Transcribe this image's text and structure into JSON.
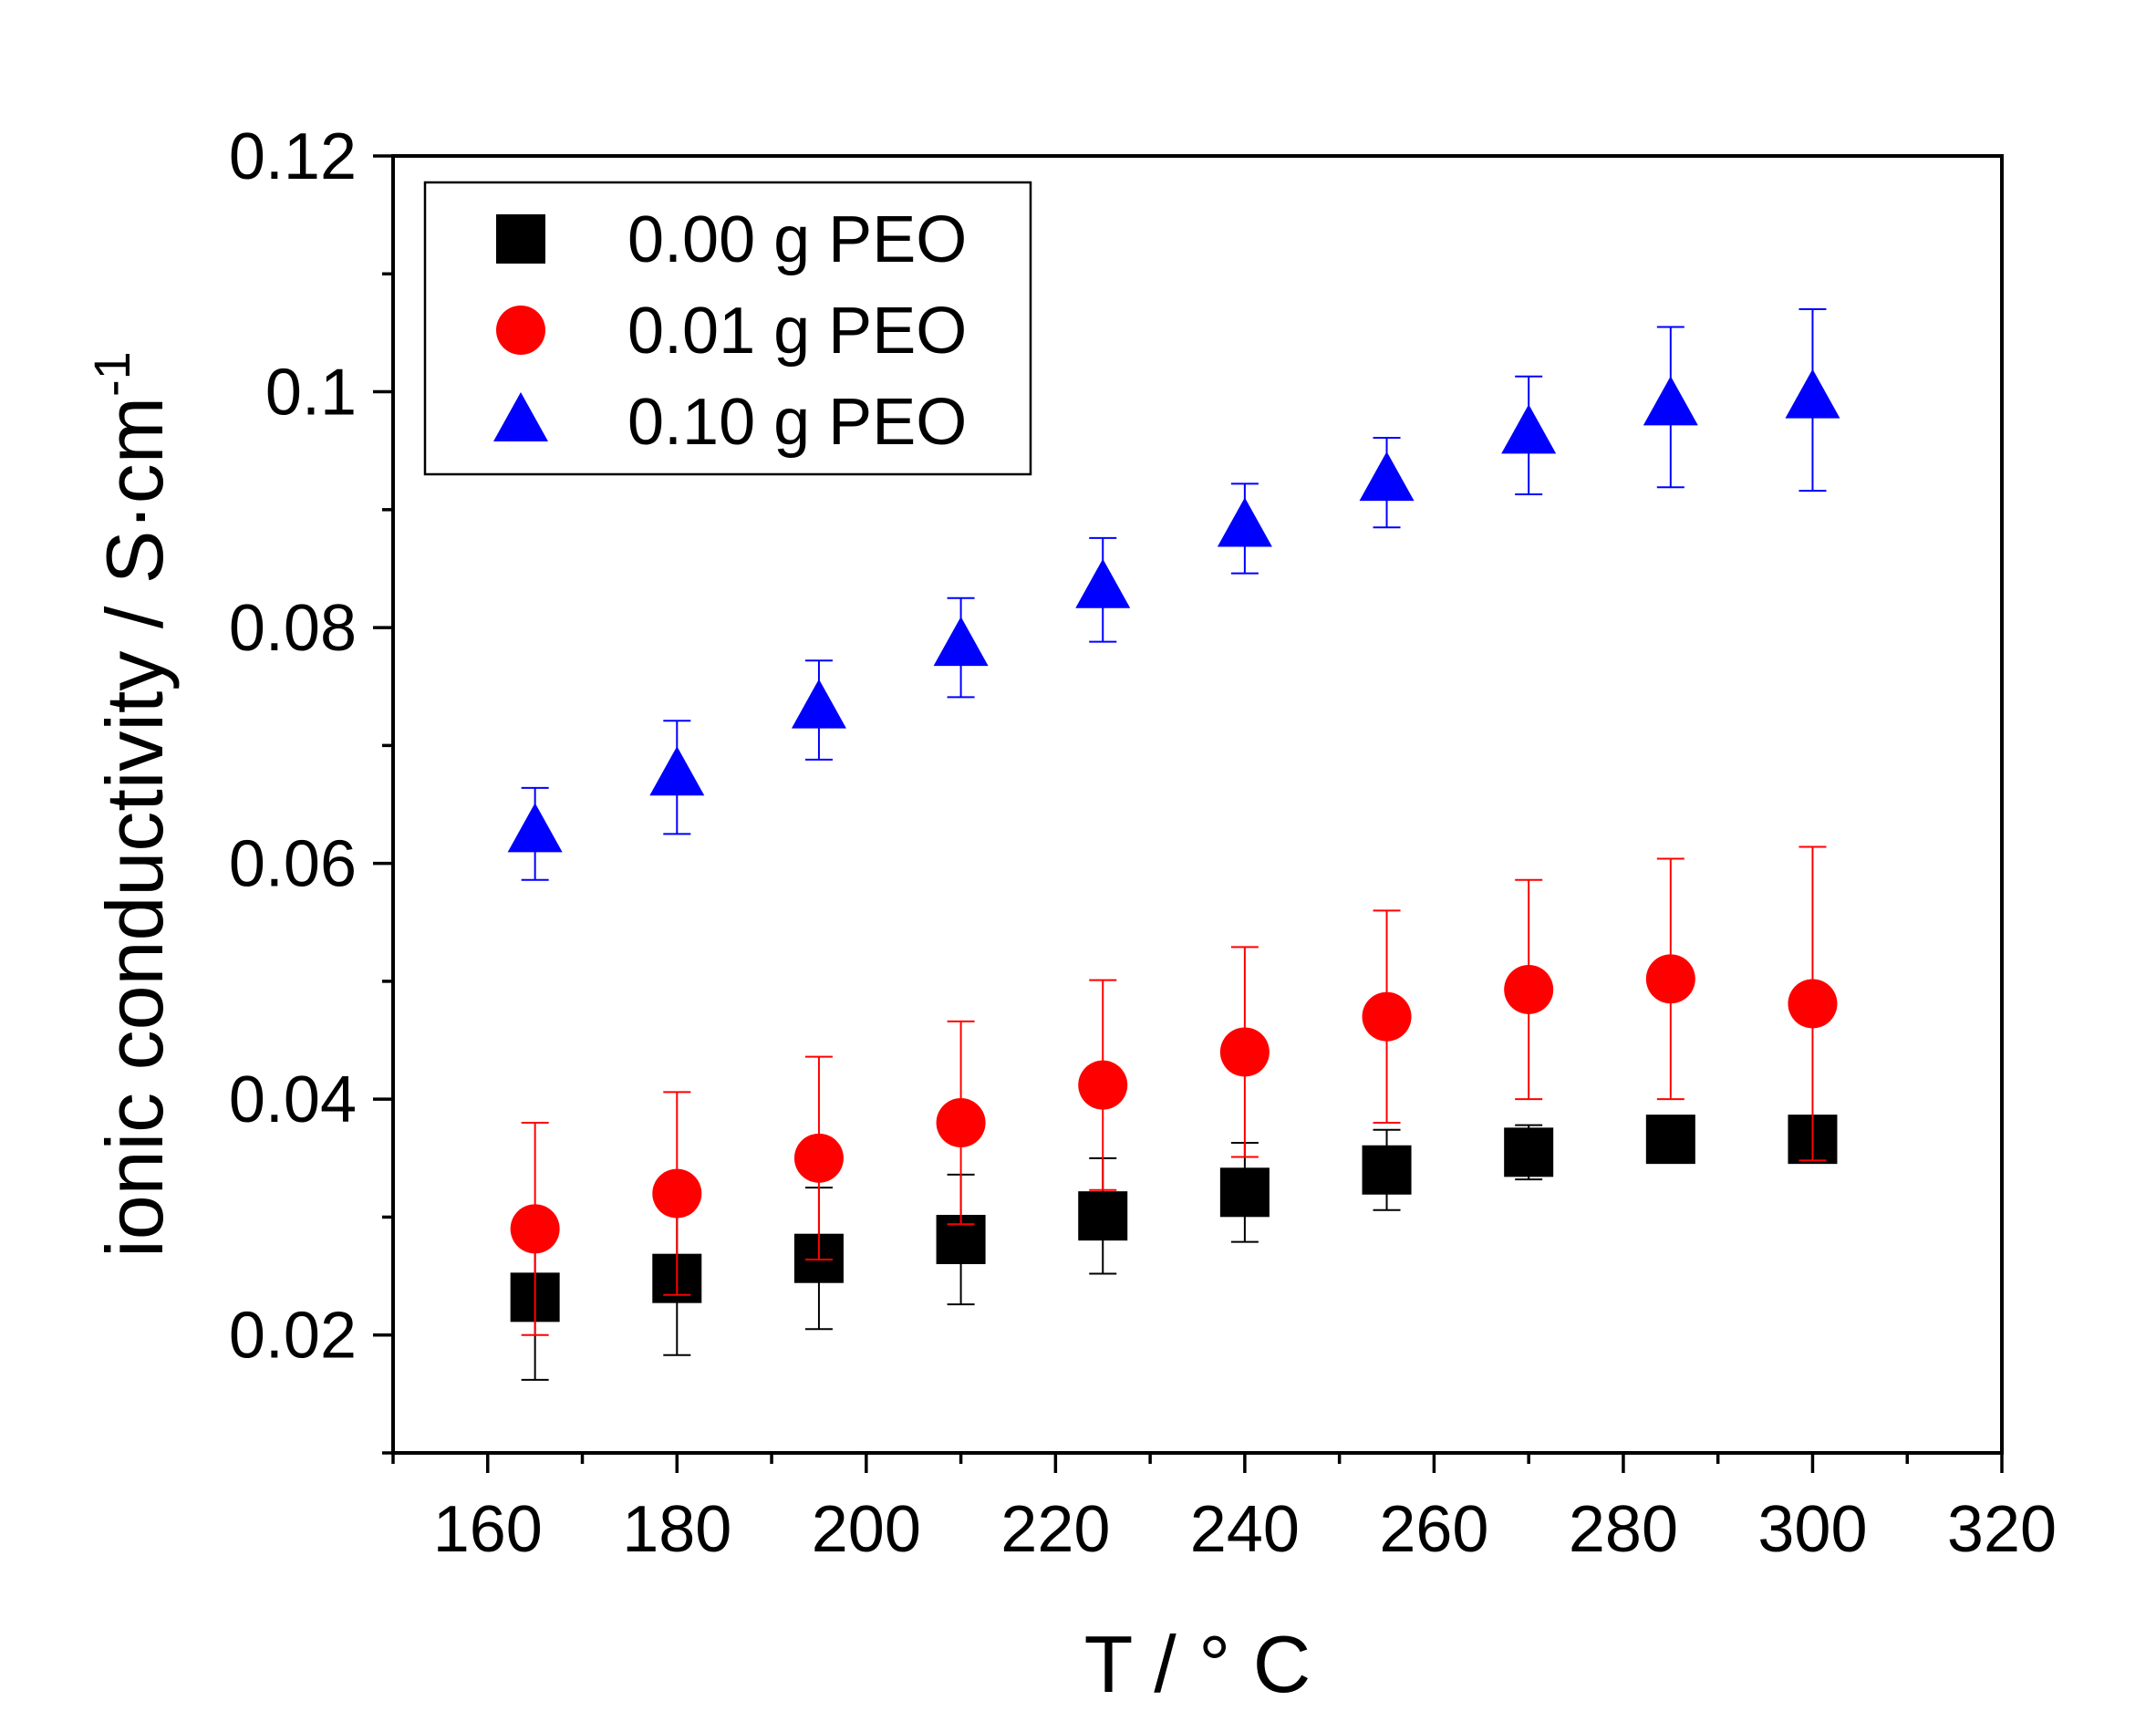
{
  "chart_data": {
    "type": "scatter",
    "title": "",
    "xlabel": "T / ° C",
    "ylabel": "ionic conductivity / S·cm",
    "ylabel_superscript": "-1",
    "xlim": [
      150,
      320
    ],
    "ylim": [
      0.01,
      0.12
    ],
    "x_ticks": [
      160,
      180,
      200,
      220,
      240,
      260,
      280,
      300,
      320
    ],
    "x_tick_labels": [
      "160",
      "180",
      "200",
      "220",
      "240",
      "260",
      "280",
      "300",
      "320"
    ],
    "y_ticks": [
      0.02,
      0.04,
      0.06,
      0.08,
      0.1,
      0.12
    ],
    "y_tick_labels": [
      "0.02",
      "0.04",
      "0.06",
      "0.08",
      "0.1",
      "0.12"
    ],
    "grid": false,
    "legend_position": "top-left",
    "x": [
      165,
      180,
      195,
      210,
      225,
      240,
      255,
      270,
      285,
      300
    ],
    "series": [
      {
        "name": "0.00 g PEO",
        "marker": "square",
        "color": "#000000",
        "values": [
          0.0232,
          0.0248,
          0.0265,
          0.0281,
          0.0301,
          0.0321,
          0.034,
          0.0355,
          0.0366,
          0.0366
        ],
        "error": [
          0.007,
          0.0065,
          0.006,
          0.0055,
          0.0049,
          0.0042,
          0.0034,
          0.0023,
          0.0012,
          0.0015
        ]
      },
      {
        "name": "0.01 g PEO",
        "marker": "circle",
        "color": "#ff0000",
        "values": [
          0.029,
          0.032,
          0.035,
          0.038,
          0.0412,
          0.044,
          0.047,
          0.0493,
          0.0502,
          0.0481
        ],
        "error": [
          0.009,
          0.0086,
          0.0086,
          0.0086,
          0.0089,
          0.0089,
          0.009,
          0.0093,
          0.0102,
          0.0133
        ]
      },
      {
        "name": "0.10 g PEO",
        "marker": "triangle",
        "color": "#0000ff",
        "values": [
          0.0625,
          0.0673,
          0.073,
          0.0783,
          0.0832,
          0.0884,
          0.0923,
          0.0963,
          0.0987,
          0.0993
        ],
        "error": [
          0.0039,
          0.0048,
          0.0042,
          0.0042,
          0.0044,
          0.0038,
          0.0038,
          0.005,
          0.0068,
          0.0077
        ]
      }
    ]
  }
}
